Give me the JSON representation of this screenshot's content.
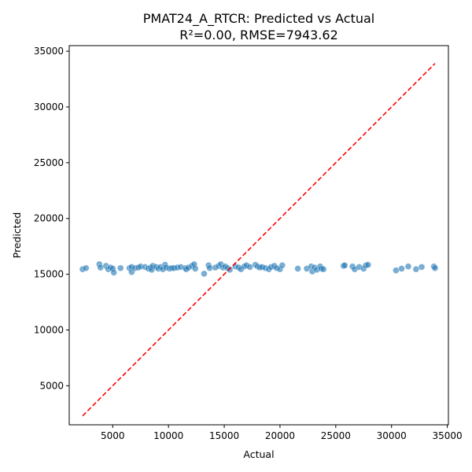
{
  "chart_data": {
    "type": "scatter",
    "title": "PMAT24_A_RTCR: Predicted vs Actual",
    "subtitle": "R²=0.00, RMSE=7943.62",
    "xlabel": "Actual",
    "ylabel": "Predicted",
    "xlim": [
      1100,
      35100
    ],
    "ylim": [
      1500,
      35500
    ],
    "xticks": [
      5000,
      10000,
      15000,
      20000,
      25000,
      30000,
      35000
    ],
    "yticks": [
      5000,
      10000,
      15000,
      20000,
      25000,
      30000,
      35000
    ],
    "grid": false,
    "point_color": "#1f77b4",
    "reference_line": {
      "style": "dashed",
      "color": "#ff0000",
      "from": [
        2300,
        2300
      ],
      "to": [
        33900,
        33900
      ]
    },
    "points": [
      {
        "x": 2300,
        "y": 15450
      },
      {
        "x": 2600,
        "y": 15550
      },
      {
        "x": 3800,
        "y": 15900
      },
      {
        "x": 3900,
        "y": 15600
      },
      {
        "x": 4400,
        "y": 15750
      },
      {
        "x": 4600,
        "y": 15450
      },
      {
        "x": 4800,
        "y": 15600
      },
      {
        "x": 5000,
        "y": 15500
      },
      {
        "x": 5100,
        "y": 15150
      },
      {
        "x": 5700,
        "y": 15550
      },
      {
        "x": 6500,
        "y": 15550
      },
      {
        "x": 6700,
        "y": 15650
      },
      {
        "x": 6700,
        "y": 15200
      },
      {
        "x": 7000,
        "y": 15550
      },
      {
        "x": 7300,
        "y": 15600
      },
      {
        "x": 7500,
        "y": 15700
      },
      {
        "x": 7900,
        "y": 15650
      },
      {
        "x": 8200,
        "y": 15500
      },
      {
        "x": 8400,
        "y": 15600
      },
      {
        "x": 8500,
        "y": 15400
      },
      {
        "x": 8600,
        "y": 15750
      },
      {
        "x": 8900,
        "y": 15650
      },
      {
        "x": 9100,
        "y": 15500
      },
      {
        "x": 9300,
        "y": 15650
      },
      {
        "x": 9500,
        "y": 15450
      },
      {
        "x": 9700,
        "y": 15850
      },
      {
        "x": 9800,
        "y": 15600
      },
      {
        "x": 10100,
        "y": 15500
      },
      {
        "x": 10300,
        "y": 15550
      },
      {
        "x": 10500,
        "y": 15550
      },
      {
        "x": 10800,
        "y": 15600
      },
      {
        "x": 11100,
        "y": 15650
      },
      {
        "x": 11500,
        "y": 15550
      },
      {
        "x": 11600,
        "y": 15450
      },
      {
        "x": 11800,
        "y": 15600
      },
      {
        "x": 12100,
        "y": 15750
      },
      {
        "x": 12300,
        "y": 15900
      },
      {
        "x": 12400,
        "y": 15500
      },
      {
        "x": 13200,
        "y": 15050
      },
      {
        "x": 13600,
        "y": 15800
      },
      {
        "x": 13700,
        "y": 15550
      },
      {
        "x": 14200,
        "y": 15600
      },
      {
        "x": 14500,
        "y": 15750
      },
      {
        "x": 14700,
        "y": 15900
      },
      {
        "x": 14900,
        "y": 15600
      },
      {
        "x": 15100,
        "y": 15700
      },
      {
        "x": 15300,
        "y": 15550
      },
      {
        "x": 15500,
        "y": 15400
      },
      {
        "x": 16000,
        "y": 15700
      },
      {
        "x": 16300,
        "y": 15600
      },
      {
        "x": 16500,
        "y": 15450
      },
      {
        "x": 16800,
        "y": 15700
      },
      {
        "x": 17000,
        "y": 15800
      },
      {
        "x": 17300,
        "y": 15650
      },
      {
        "x": 17800,
        "y": 15850
      },
      {
        "x": 18000,
        "y": 15700
      },
      {
        "x": 18200,
        "y": 15600
      },
      {
        "x": 18400,
        "y": 15650
      },
      {
        "x": 18700,
        "y": 15550
      },
      {
        "x": 19000,
        "y": 15450
      },
      {
        "x": 19200,
        "y": 15650
      },
      {
        "x": 19500,
        "y": 15750
      },
      {
        "x": 19700,
        "y": 15550
      },
      {
        "x": 20000,
        "y": 15450
      },
      {
        "x": 20200,
        "y": 15800
      },
      {
        "x": 21600,
        "y": 15500
      },
      {
        "x": 22400,
        "y": 15500
      },
      {
        "x": 22800,
        "y": 15700
      },
      {
        "x": 22900,
        "y": 15250
      },
      {
        "x": 23100,
        "y": 15600
      },
      {
        "x": 23300,
        "y": 15400
      },
      {
        "x": 23600,
        "y": 15700
      },
      {
        "x": 23700,
        "y": 15500
      },
      {
        "x": 23900,
        "y": 15450
      },
      {
        "x": 25700,
        "y": 15750
      },
      {
        "x": 25800,
        "y": 15800
      },
      {
        "x": 26500,
        "y": 15700
      },
      {
        "x": 26700,
        "y": 15450
      },
      {
        "x": 27100,
        "y": 15650
      },
      {
        "x": 27500,
        "y": 15500
      },
      {
        "x": 27700,
        "y": 15800
      },
      {
        "x": 27900,
        "y": 15850
      },
      {
        "x": 30400,
        "y": 15350
      },
      {
        "x": 30900,
        "y": 15500
      },
      {
        "x": 31500,
        "y": 15700
      },
      {
        "x": 32200,
        "y": 15450
      },
      {
        "x": 32700,
        "y": 15650
      },
      {
        "x": 33800,
        "y": 15700
      },
      {
        "x": 33900,
        "y": 15550
      }
    ]
  }
}
